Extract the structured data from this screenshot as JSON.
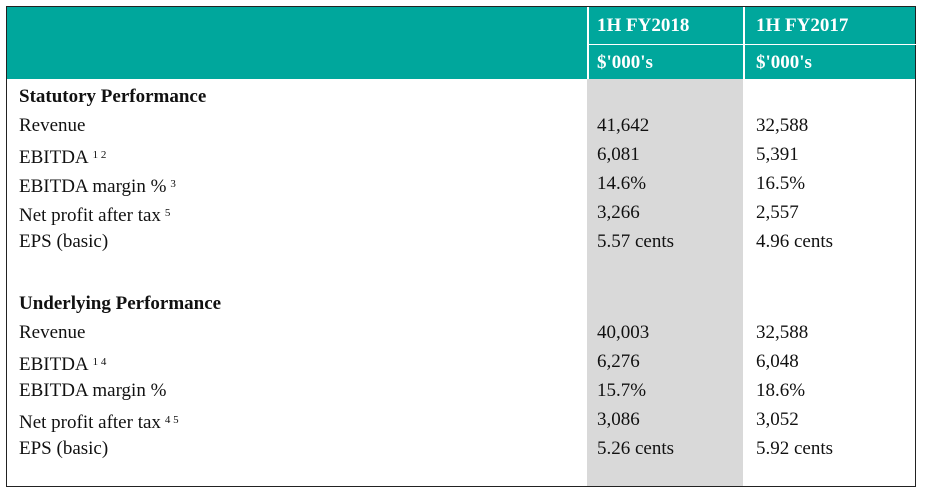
{
  "header": {
    "columns": [
      {
        "period": "1H FY2018",
        "unit": "$'000's"
      },
      {
        "period": "1H FY2017",
        "unit": "$'000's"
      }
    ]
  },
  "sections": [
    {
      "title": "Statutory Performance",
      "rows": [
        {
          "label": "Revenue",
          "values": [
            "41,642",
            "32,588"
          ]
        },
        {
          "label": "EBITDA",
          "notes": "1 2",
          "values": [
            "6,081",
            "5,391"
          ]
        },
        {
          "label": "EBITDA margin %",
          "notes": "3",
          "values": [
            "14.6%",
            "16.5%"
          ]
        },
        {
          "label": "Net profit after tax",
          "notes": "5",
          "values": [
            "3,266",
            "2,557"
          ]
        },
        {
          "label": "EPS (basic)",
          "values": [
            "5.57 cents",
            "4.96 cents"
          ]
        }
      ]
    },
    {
      "title": "Underlying Performance",
      "rows": [
        {
          "label": "Revenue",
          "values": [
            "40,003",
            "32,588"
          ]
        },
        {
          "label": "EBITDA",
          "notes": "1 4",
          "values": [
            "6,276",
            "6,048"
          ]
        },
        {
          "label": "EBITDA margin %",
          "values": [
            "15.7%",
            "18.6%"
          ]
        },
        {
          "label": "Net profit after tax",
          "notes": "4 5",
          "values": [
            "3,086",
            "3,052"
          ]
        },
        {
          "label": "EPS (basic)",
          "values": [
            "5.26 cents",
            "5.92 cents"
          ]
        }
      ]
    }
  ]
}
